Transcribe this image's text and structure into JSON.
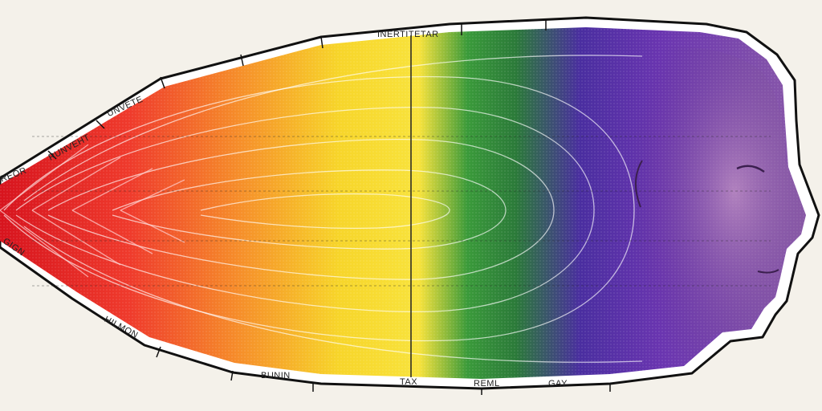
{
  "illustration": {
    "gradient_colors": [
      "#d7141e",
      "#ef3a2c",
      "#f6902a",
      "#f7d52a",
      "#f8e33c",
      "#3a9a3a",
      "#2b7a39",
      "#4a2ea0",
      "#6a35b0",
      "#8a5aa8"
    ],
    "outline_color": "#111111",
    "sticker_border": "#ffffff",
    "face_tone": "#9c6aa6"
  },
  "labels": {
    "top": "INERTITETAR",
    "upper_left_1": "UNVETE",
    "upper_left_2": "RUNVEHT",
    "left_tip": "REOR",
    "lower_left_1": "GIGN",
    "lower_left_2": "HILMON",
    "bottom_1": "BUNIN",
    "bottom_2": "TAX",
    "bottom_3": "REML",
    "bottom_4": "GAY"
  }
}
